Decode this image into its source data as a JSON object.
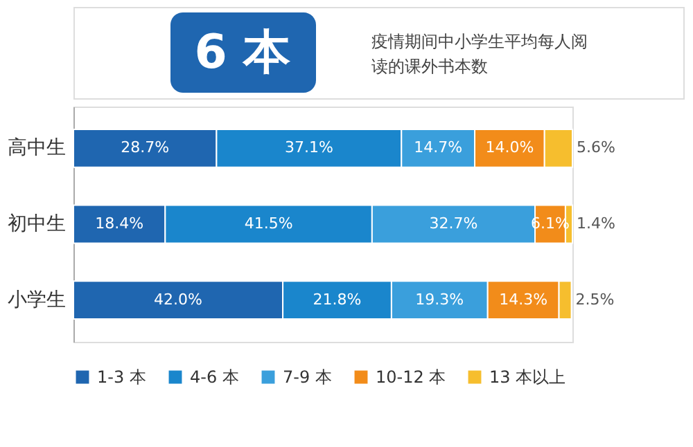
{
  "chart_data": {
    "type": "bar",
    "orientation": "horizontal",
    "stacked": true,
    "title": "疫情期间中小学生平均每人阅读的课外书本数",
    "annotations": [
      "6 本"
    ],
    "categories": [
      "高中生",
      "初中生",
      "小学生"
    ],
    "series": [
      {
        "name": "1-3 本",
        "color": "#1f66b0",
        "values": [
          28.7,
          18.4,
          42.0
        ],
        "value_labels": [
          "28.7%",
          "18.4%",
          "42.0%"
        ]
      },
      {
        "name": "4-6 本",
        "color": "#1a86cc",
        "values": [
          37.1,
          41.5,
          21.8
        ],
        "value_labels": [
          "37.1%",
          "41.5%",
          "21.8%"
        ]
      },
      {
        "name": "7-9 本",
        "color": "#3a9fdc",
        "values": [
          14.7,
          32.7,
          19.3
        ],
        "value_labels": [
          "14.7%",
          "32.7%",
          "19.3%"
        ]
      },
      {
        "name": "10-12 本",
        "color": "#f28c1a",
        "values": [
          14.0,
          6.1,
          14.3
        ],
        "value_labels": [
          "14.0%",
          "6.1%",
          "14.3%"
        ]
      },
      {
        "name": "13 本以上",
        "color": "#f6be2e",
        "values": [
          5.6,
          1.4,
          2.5
        ],
        "value_labels": [
          "5.6%",
          "1.4%",
          "2.5%"
        ]
      }
    ],
    "legend": "bottom",
    "grid": false
  }
}
